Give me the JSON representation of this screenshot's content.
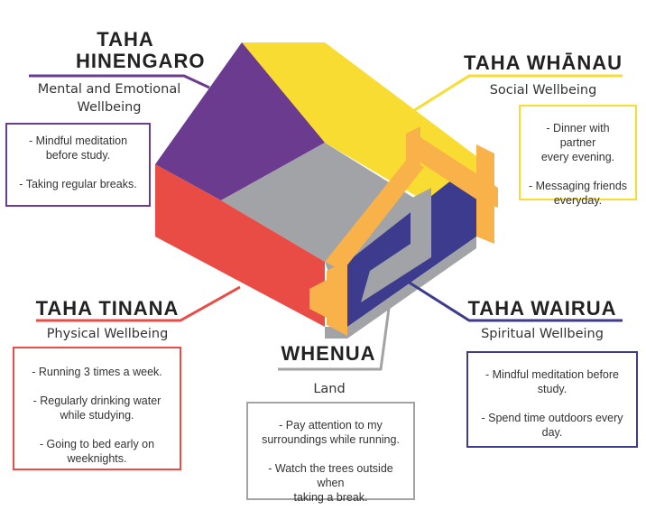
{
  "colors": {
    "hinengaro": "#6b3b8f",
    "whanau": "#f9dc32",
    "tinana": "#e84c45",
    "wairua": "#3c3b8e",
    "whenua": "#a2a3a6",
    "frame": "#f9b24a"
  },
  "hinengaro": {
    "title": "TAHA\nHINENGARO",
    "subtitle": "Mental and Emotional\nWellbeing",
    "items": [
      "- Mindful meditation\nbefore study.",
      "- Taking regular breaks."
    ]
  },
  "whanau": {
    "title": "TAHA WHĀNAU",
    "subtitle": "Social Wellbeing",
    "items": [
      "- Dinner with partner\nevery evening.",
      "- Messaging friends\neveryday."
    ]
  },
  "tinana": {
    "title": "TAHA TINANA",
    "subtitle": "Physical Wellbeing",
    "items": [
      "- Running 3 times a week.",
      "- Regularly drinking water\nwhile studying.",
      "- Going to bed early on\nweeknights."
    ]
  },
  "wairua": {
    "title": "TAHA WAIRUA",
    "subtitle": "Spiritual Wellbeing",
    "items": [
      "- Mindful meditation before\nstudy.",
      "- Spend time outdoors every\nday."
    ]
  },
  "whenua": {
    "title": "WHENUA",
    "subtitle": "Land",
    "items": [
      "- Pay attention to my\nsurroundings while running.",
      "- Watch the trees outside when\ntaking a break."
    ]
  }
}
